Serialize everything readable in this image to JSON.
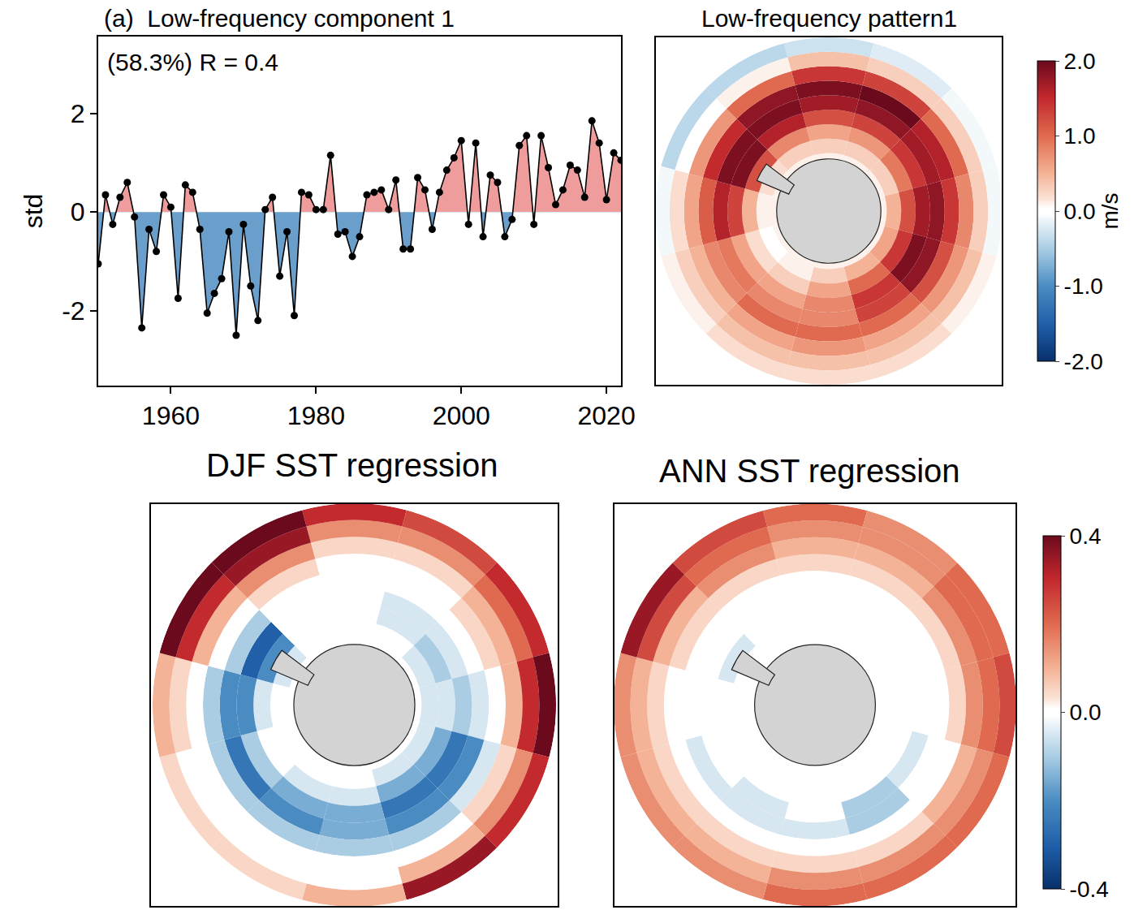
{
  "chart_data": [
    {
      "type": "line",
      "title": "(a)  Low-frequency component 1",
      "annotations": [
        "(58.3%) R = 0.4"
      ],
      "y_label": "std",
      "x": [
        1950,
        1951,
        1952,
        1953,
        1954,
        1955,
        1956,
        1957,
        1958,
        1959,
        1960,
        1961,
        1962,
        1963,
        1964,
        1965,
        1966,
        1967,
        1968,
        1969,
        1970,
        1971,
        1972,
        1973,
        1974,
        1975,
        1976,
        1977,
        1978,
        1979,
        1980,
        1981,
        1982,
        1983,
        1984,
        1985,
        1986,
        1987,
        1988,
        1989,
        1990,
        1991,
        1992,
        1993,
        1994,
        1995,
        1996,
        1997,
        1998,
        1999,
        2000,
        2001,
        2002,
        2003,
        2004,
        2005,
        2006,
        2007,
        2008,
        2009,
        2010,
        2011,
        2012,
        2013,
        2014,
        2015,
        2016,
        2017,
        2018,
        2019,
        2020,
        2021,
        2022
      ],
      "values": [
        -1.05,
        0.35,
        -0.25,
        0.3,
        0.6,
        -0.1,
        -2.35,
        -0.35,
        -0.8,
        0.35,
        0.1,
        -1.75,
        0.55,
        0.4,
        -0.35,
        -2.05,
        -1.65,
        -1.35,
        -0.4,
        -2.5,
        -0.25,
        -1.5,
        -2.2,
        0.05,
        0.3,
        -1.3,
        -0.4,
        -2.1,
        0.4,
        0.35,
        0.05,
        0.05,
        1.15,
        -0.45,
        -0.4,
        -0.9,
        -0.5,
        0.35,
        0.4,
        0.45,
        0.05,
        0.65,
        -0.75,
        -0.75,
        0.7,
        0.45,
        -0.35,
        0.4,
        0.85,
        1.1,
        1.45,
        -0.25,
        1.4,
        -0.5,
        0.75,
        0.6,
        -0.5,
        -0.15,
        1.35,
        1.55,
        -0.25,
        1.55,
        0.9,
        0.15,
        0.45,
        0.95,
        0.85,
        0.3,
        1.85,
        1.4,
        0.25,
        1.2,
        1.05
      ],
      "color": "#000000",
      "colors": [
        "#ef9c9c",
        "#6b9fcb"
      ],
      "marker": "circle",
      "xlim": [
        1950,
        2022
      ],
      "xticks": [
        1960,
        1980,
        2000,
        2020
      ],
      "ylim": [
        -3.52,
        3.56
      ],
      "yticks": [
        -2,
        0,
        2
      ]
    },
    {
      "type": "polar_heatmap",
      "title": "Low-frequency pattern1",
      "lat_lim": [
        -90,
        -30
      ],
      "latitudes": [
        -72.5,
        -67.5,
        -62.5,
        -57.5,
        -52.5,
        -47.5,
        -42.5,
        -37.5,
        -32.5
      ],
      "longitudes": [
        0,
        30,
        60,
        90,
        120,
        150,
        180,
        210,
        240,
        270,
        300,
        330
      ],
      "cells": [
        [
          0.1,
          0.1,
          0.1,
          0.1,
          0.1,
          0.1,
          0.1,
          0.1,
          0.1,
          0.1,
          0.1,
          0.1
        ],
        [
          0.3,
          0.3,
          0.3,
          0.5,
          0.6,
          0.5,
          0.3,
          0.1,
          0.0,
          0.1,
          0.2,
          0.3
        ],
        [
          0.6,
          0.7,
          0.9,
          1.2,
          1.4,
          1.0,
          0.6,
          0.3,
          0.2,
          0.5,
          1.2,
          0.8
        ],
        [
          1.2,
          1.3,
          1.4,
          1.7,
          1.9,
          1.4,
          0.8,
          0.6,
          0.6,
          1.3,
          1.9,
          1.6
        ],
        [
          1.7,
          1.8,
          1.7,
          1.8,
          1.8,
          1.3,
          0.8,
          0.8,
          0.9,
          1.6,
          1.9,
          1.9
        ],
        [
          1.9,
          2.0,
          1.6,
          1.4,
          1.2,
          1.0,
          1.0,
          1.0,
          0.8,
          1.1,
          1.5,
          1.8
        ],
        [
          1.4,
          1.3,
          1.0,
          0.8,
          0.7,
          0.6,
          0.7,
          0.6,
          0.5,
          0.6,
          0.7,
          1.0
        ],
        [
          0.4,
          0.3,
          0.3,
          0.3,
          0.4,
          0.4,
          0.4,
          0.4,
          0.3,
          0.2,
          0.0,
          0.1
        ],
        [
          -0.3,
          -0.2,
          -0.1,
          -0.1,
          0.1,
          0.2,
          0.2,
          0.2,
          0.1,
          -0.1,
          -0.4,
          -0.4
        ]
      ],
      "zlim": [
        -2,
        2
      ],
      "colorbar": {
        "title": "m/s",
        "ticks": [
          {
            "value": 2,
            "label": "2.0"
          },
          {
            "value": 1,
            "label": "1.0"
          },
          {
            "value": 0,
            "label": "0.0"
          },
          {
            "value": -1,
            "label": "-1.0"
          },
          {
            "value": -2,
            "label": "-2.0"
          }
        ]
      }
    },
    {
      "type": "polar_heatmap",
      "title": "DJF SST regression",
      "lat_lim": [
        -90,
        -30
      ],
      "latitudes": [
        -72.5,
        -67.5,
        -62.5,
        -57.5,
        -52.5,
        -47.5,
        -42.5,
        -37.5,
        -32.5
      ],
      "longitudes": [
        0,
        30,
        60,
        90,
        120,
        150,
        180,
        210,
        240,
        270,
        300,
        330
      ],
      "cells": [
        [
          0,
          0,
          0,
          0,
          0,
          0,
          0,
          0,
          0,
          0,
          0,
          0
        ],
        [
          0,
          0,
          -0.05,
          -0.05,
          -0.05,
          -0.05,
          0,
          0,
          0,
          0,
          -0.05,
          0
        ],
        [
          0,
          -0.05,
          -0.1,
          -0.05,
          -0.15,
          -0.15,
          -0.05,
          -0.05,
          0,
          -0.05,
          -0.2,
          0
        ],
        [
          0,
          -0.05,
          -0.05,
          -0.1,
          -0.25,
          -0.25,
          -0.15,
          -0.15,
          -0.1,
          -0.2,
          -0.3,
          0
        ],
        [
          0,
          0,
          0,
          -0.05,
          -0.2,
          -0.2,
          -0.15,
          -0.2,
          -0.25,
          -0.2,
          -0.1,
          0
        ],
        [
          0,
          0,
          0.05,
          0,
          -0.05,
          -0.1,
          -0.1,
          -0.1,
          -0.1,
          -0.1,
          0,
          0.05
        ],
        [
          0.05,
          0.05,
          0.1,
          0.1,
          0.05,
          0,
          0,
          0,
          0,
          0,
          0.1,
          0.15
        ],
        [
          0.15,
          0.15,
          0.2,
          0.3,
          0.15,
          0.1,
          0,
          0,
          0,
          0.05,
          0.3,
          0.35
        ],
        [
          0.3,
          0.25,
          0.3,
          0.4,
          0.3,
          0.35,
          0.1,
          0.05,
          0.05,
          0.1,
          0.45,
          0.45
        ]
      ],
      "zlim": [
        -0.4,
        0.4
      ]
    },
    {
      "type": "polar_heatmap",
      "title": "ANN SST regression",
      "lat_lim": [
        -90,
        -30
      ],
      "latitudes": [
        -72.5,
        -67.5,
        -62.5,
        -57.5,
        -52.5,
        -47.5,
        -42.5,
        -37.5,
        -32.5
      ],
      "longitudes": [
        0,
        30,
        60,
        90,
        120,
        150,
        180,
        210,
        240,
        270,
        300,
        330
      ],
      "cells": [
        [
          0,
          0,
          0,
          0,
          0,
          0,
          0,
          0,
          0,
          0,
          0,
          0
        ],
        [
          0,
          0,
          0,
          0,
          0,
          0,
          0,
          0,
          0,
          0,
          0,
          0
        ],
        [
          0,
          0,
          0,
          0,
          0,
          0,
          0,
          0,
          0,
          0,
          -0.05,
          0
        ],
        [
          0,
          0,
          0,
          0,
          -0.05,
          -0.1,
          0,
          -0.05,
          0,
          0,
          0,
          0
        ],
        [
          0,
          0,
          0,
          0,
          0,
          -0.1,
          -0.05,
          -0.05,
          -0.05,
          0,
          0,
          0
        ],
        [
          0.05,
          0.05,
          0.05,
          0.05,
          0,
          0,
          0,
          0,
          0,
          0,
          0.05,
          0.05
        ],
        [
          0.1,
          0.1,
          0.15,
          0.15,
          0.1,
          0.05,
          0.05,
          0.05,
          0.05,
          0.05,
          0.1,
          0.15
        ],
        [
          0.15,
          0.15,
          0.2,
          0.2,
          0.15,
          0.15,
          0.15,
          0.1,
          0.1,
          0.1,
          0.25,
          0.2
        ],
        [
          0.2,
          0.15,
          0.2,
          0.25,
          0.2,
          0.2,
          0.2,
          0.15,
          0.15,
          0.15,
          0.35,
          0.25
        ]
      ],
      "zlim": [
        -0.4,
        0.4
      ],
      "colorbar": {
        "ticks": [
          0.4,
          {
            "value": 0,
            "label": "0.0"
          },
          -0.4
        ]
      }
    }
  ]
}
